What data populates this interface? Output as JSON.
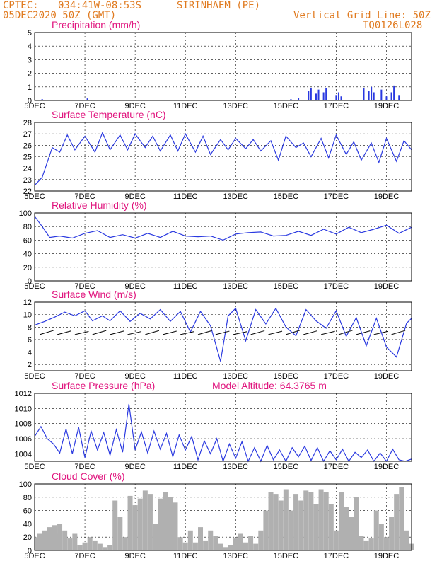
{
  "header": {
    "source": "CPTEC:",
    "coords": "034:41W-08:53S",
    "location": "SIRINHAEM (PE)",
    "run_time": "05DEC2020 50Z (GMT)",
    "grid_line": "Vertical Grid Line: 50Z",
    "model_code": "TQ0126L028"
  },
  "chart_data": [
    {
      "id": "precip",
      "type": "bar",
      "title": "Precipitation (mm/h)",
      "ylim": [
        0,
        5
      ],
      "yticks": [
        "5",
        "4",
        "3",
        "2",
        "1",
        "0"
      ],
      "xticks": [
        "5DEC",
        "7DEC",
        "9DEC",
        "11DEC",
        "13DEC",
        "15DEC",
        "17DEC",
        "19DEC"
      ],
      "x": [
        0.3,
        2.1,
        9.5,
        10.2,
        10.5,
        10.9,
        11.0,
        11.2,
        11.3,
        11.5,
        11.6,
        12.0,
        12.1,
        12.2,
        13.1,
        13.3,
        13.4,
        13.5,
        13.8,
        14.0,
        14.2,
        14.3,
        14.5
      ],
      "values": [
        0.1,
        0.15,
        0.05,
        0.1,
        0.2,
        0.7,
        0.9,
        0.5,
        0.8,
        0.6,
        0.9,
        0.4,
        0.6,
        0.3,
        0.9,
        0.7,
        1.0,
        0.6,
        0.8,
        0.3,
        0.6,
        1.1,
        0.4
      ]
    },
    {
      "id": "temp",
      "type": "line",
      "title": "Surface Temperature (nC)",
      "ylim": [
        22,
        28
      ],
      "yticks": [
        "28",
        "27",
        "26",
        "25",
        "24",
        "23",
        "22"
      ],
      "xticks": [
        "5DEC",
        "7DEC",
        "9DEC",
        "11DEC",
        "13DEC",
        "15DEC",
        "17DEC",
        "19DEC"
      ],
      "x": [
        0,
        0.3,
        0.7,
        1.0,
        1.3,
        1.6,
        2.0,
        2.4,
        2.7,
        3.0,
        3.4,
        3.7,
        4.0,
        4.4,
        4.7,
        5.0,
        5.4,
        5.7,
        6.0,
        6.4,
        6.7,
        7.0,
        7.4,
        7.7,
        8.0,
        8.4,
        8.7,
        9.0,
        9.4,
        9.7,
        10.0,
        10.4,
        10.7,
        11.0,
        11.4,
        11.7,
        12.0,
        12.4,
        12.7,
        13.0,
        13.4,
        13.7,
        14.0,
        14.4,
        14.7,
        15.0
      ],
      "values": [
        22.5,
        23.2,
        25.8,
        25.4,
        26.9,
        25.6,
        26.8,
        25.4,
        27.1,
        25.6,
        26.9,
        25.6,
        27.0,
        25.8,
        26.8,
        25.5,
        26.9,
        25.5,
        27.0,
        25.4,
        26.8,
        25.2,
        26.5,
        25.6,
        26.6,
        25.7,
        26.5,
        25.5,
        26.4,
        24.7,
        26.8,
        25.8,
        26.2,
        25.0,
        26.6,
        24.9,
        26.9,
        25.2,
        26.3,
        24.7,
        26.2,
        24.5,
        26.6,
        24.6,
        26.4,
        25.6
      ]
    },
    {
      "id": "humidity",
      "type": "line",
      "title": "Relative Humidity (%)",
      "ylim": [
        0,
        100
      ],
      "yticks": [
        "100",
        "80",
        "60",
        "40",
        "20",
        "0"
      ],
      "xticks": [
        "5DEC",
        "7DEC",
        "9DEC",
        "11DEC",
        "13DEC",
        "15DEC",
        "17DEC",
        "19DEC"
      ],
      "x": [
        0,
        0.3,
        0.6,
        1.0,
        1.5,
        2.0,
        2.5,
        3.0,
        3.5,
        4.0,
        4.5,
        5.0,
        5.5,
        6.0,
        6.5,
        7.0,
        7.5,
        8.0,
        8.5,
        9.0,
        9.5,
        10.0,
        10.5,
        11.0,
        11.5,
        12.0,
        12.5,
        13.0,
        13.5,
        14.0,
        14.5,
        15.0
      ],
      "values": [
        95,
        80,
        64,
        66,
        63,
        70,
        74,
        64,
        68,
        63,
        70,
        64,
        73,
        66,
        65,
        66,
        60,
        69,
        71,
        72,
        66,
        67,
        73,
        67,
        76,
        69,
        79,
        71,
        76,
        82,
        70,
        79
      ]
    },
    {
      "id": "wind",
      "type": "line",
      "title": "Surface Wind (m/s)",
      "ylim": [
        1,
        12
      ],
      "yticks": [
        "12",
        "10",
        "8",
        "6",
        "4",
        "2"
      ],
      "xticks": [
        "5DEC",
        "7DEC",
        "9DEC",
        "11DEC",
        "13DEC",
        "15DEC",
        "17DEC",
        "19DEC"
      ],
      "x": [
        0,
        0.4,
        0.8,
        1.2,
        1.6,
        2.0,
        2.3,
        2.7,
        3.0,
        3.4,
        3.8,
        4.2,
        4.6,
        5.0,
        5.4,
        5.8,
        6.2,
        6.6,
        7.0,
        7.4,
        7.7,
        8.0,
        8.4,
        8.8,
        9.2,
        9.6,
        10.0,
        10.4,
        10.8,
        11.2,
        11.6,
        12.0,
        12.4,
        12.8,
        13.2,
        13.6,
        14.0,
        14.4,
        14.8,
        15.0
      ],
      "values": [
        8.3,
        8.9,
        9.6,
        10.4,
        9.8,
        10.6,
        9.0,
        9.8,
        9.0,
        10.6,
        8.9,
        10.2,
        9.3,
        10.8,
        8.9,
        10.5,
        7.2,
        10.5,
        8.2,
        2.5,
        9.8,
        11.0,
        5.8,
        10.8,
        8.5,
        11.0,
        8.0,
        6.6,
        10.8,
        9.0,
        7.8,
        10.6,
        6.5,
        9.5,
        5.0,
        9.4,
        4.8,
        3.2,
        8.6,
        9.4
      ],
      "arrows_title": "wind direction vectors"
    },
    {
      "id": "pressure",
      "type": "line",
      "title": "Surface Pressure (hPa)",
      "annotation": "Model Altitude: 64.3765 m",
      "ylim": [
        1003,
        1012
      ],
      "yticks": [
        "1012",
        "1010",
        "1008",
        "1006",
        "1004"
      ],
      "xticks": [
        "5DEC",
        "7DEC",
        "9DEC",
        "11DEC",
        "13DEC",
        "15DEC",
        "17DEC",
        "19DEC"
      ],
      "x": [
        0,
        0.25,
        0.5,
        0.75,
        1.0,
        1.25,
        1.5,
        1.75,
        2.0,
        2.25,
        2.5,
        2.75,
        3.0,
        3.25,
        3.5,
        3.75,
        4.0,
        4.25,
        4.5,
        4.75,
        5.0,
        5.25,
        5.5,
        5.75,
        6.0,
        6.25,
        6.5,
        6.75,
        7.0,
        7.25,
        7.5,
        7.75,
        8.0,
        8.25,
        8.5,
        8.75,
        9.0,
        9.25,
        9.5,
        9.75,
        10.0,
        10.25,
        10.5,
        10.75,
        11.0,
        11.25,
        11.5,
        11.75,
        12.0,
        12.25,
        12.5,
        12.75,
        13.0,
        13.25,
        13.5,
        13.75,
        14.0,
        14.25,
        14.5,
        14.75,
        15.0
      ],
      "values": [
        1006.3,
        1007.6,
        1006.0,
        1005.3,
        1004.1,
        1007.3,
        1004.0,
        1007.5,
        1003.5,
        1007.0,
        1004.5,
        1006.8,
        1003.8,
        1007.2,
        1004.2,
        1010.6,
        1004.5,
        1006.9,
        1004.1,
        1007.0,
        1004.6,
        1006.7,
        1003.6,
        1006.5,
        1004.5,
        1006.3,
        1003.2,
        1005.7,
        1004.0,
        1006.0,
        1003.0,
        1005.3,
        1003.4,
        1005.6,
        1003.0,
        1004.8,
        1002.9,
        1005.1,
        1003.2,
        1004.5,
        1002.8,
        1004.8,
        1003.6,
        1005.0,
        1003.1,
        1004.8,
        1003.0,
        1004.4,
        1003.2,
        1004.6,
        1003.0,
        1004.2,
        1003.5,
        1004.5,
        1003.0,
        1004.1,
        1002.7,
        1004.6,
        1003.2,
        1003.0,
        1003.3
      ]
    },
    {
      "id": "cloud",
      "type": "bar",
      "title": "Cloud Cover (%)",
      "ylim": [
        0,
        100
      ],
      "yticks": [
        "100",
        "80",
        "60",
        "40",
        "20",
        "0"
      ],
      "xticks": [
        "5DEC",
        "7DEC",
        "9DEC",
        "11DEC",
        "13DEC",
        "15DEC",
        "17DEC",
        "19DEC"
      ],
      "x": [
        0.1,
        0.2,
        0.3,
        0.4,
        0.5,
        0.6,
        0.7,
        0.8,
        0.9,
        1.0,
        1.2,
        1.4,
        1.6,
        1.8,
        2.0,
        2.2,
        2.4,
        2.6,
        2.8,
        3.0,
        3.2,
        3.4,
        3.6,
        3.8,
        4.0,
        4.2,
        4.4,
        4.6,
        4.8,
        5.0,
        5.2,
        5.4,
        5.6,
        5.8,
        6.0,
        6.2,
        6.4,
        6.6,
        6.8,
        7.0,
        7.2,
        7.4,
        7.6,
        7.8,
        8.0,
        8.2,
        8.4,
        8.6,
        8.8,
        9.0,
        9.2,
        9.4,
        9.6,
        9.8,
        10.0,
        10.2,
        10.4,
        10.6,
        10.8,
        11.0,
        11.2,
        11.4,
        11.6,
        11.8,
        12.0,
        12.2,
        12.4,
        12.6,
        12.8,
        13.0,
        13.2,
        13.4,
        13.6,
        13.8,
        14.0,
        14.2,
        14.4,
        14.6,
        14.8,
        15.0
      ],
      "values": [
        20,
        25,
        18,
        30,
        22,
        35,
        28,
        38,
        25,
        40,
        30,
        18,
        25,
        8,
        12,
        20,
        15,
        10,
        5,
        8,
        75,
        50,
        20,
        82,
        68,
        78,
        90,
        85,
        40,
        78,
        88,
        80,
        72,
        20,
        12,
        30,
        12,
        35,
        15,
        30,
        22,
        10,
        5,
        8,
        18,
        25,
        12,
        22,
        10,
        30,
        60,
        88,
        85,
        75,
        92,
        60,
        85,
        75,
        90,
        88,
        70,
        92,
        88,
        70,
        30,
        88,
        65,
        50,
        80,
        22,
        15,
        18,
        60,
        40,
        20,
        50,
        85,
        95,
        30,
        10
      ]
    }
  ]
}
